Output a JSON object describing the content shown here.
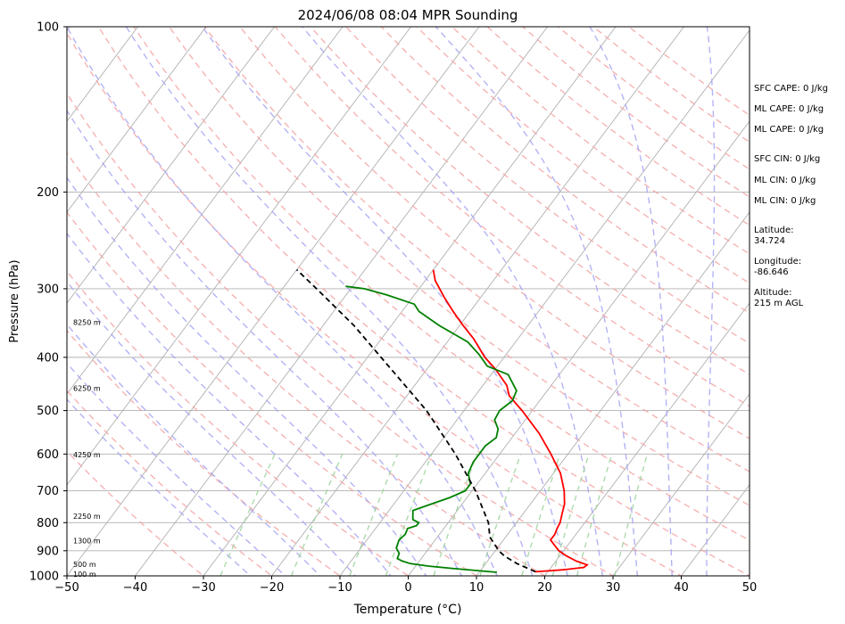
{
  "chart_data": {
    "type": "line",
    "title": "2024/06/08 08:04 MPR Sounding",
    "xlabel": "Temperature (°C)",
    "ylabel": "Pressure (hPa)",
    "xlim": [
      -50,
      50
    ],
    "ylim": [
      1000,
      100
    ],
    "y_scale": "log",
    "x_ticks": [
      "−50",
      "−40",
      "−30",
      "−20",
      "−10",
      "0",
      "10",
      "20",
      "30",
      "40",
      "50"
    ],
    "y_ticks": [
      {
        "p": 100,
        "label": "100"
      },
      {
        "p": 200,
        "label": "200"
      },
      {
        "p": 300,
        "label": "300"
      },
      {
        "p": 400,
        "label": "400"
      },
      {
        "p": 500,
        "label": "500"
      },
      {
        "p": 600,
        "label": "600"
      },
      {
        "p": 700,
        "label": "700"
      },
      {
        "p": 800,
        "label": "800"
      },
      {
        "p": 900,
        "label": "900"
      },
      {
        "p": 1000,
        "label": "1000"
      }
    ],
    "grid": true,
    "skew": true,
    "series": [
      {
        "id": "temperature",
        "color": "#ff0000",
        "p": [
          983,
          975,
          965,
          955,
          940,
          920,
          900,
          880,
          860,
          840,
          820,
          800,
          770,
          740,
          700,
          650,
          600,
          550,
          500,
          470,
          450,
          420,
          400,
          370,
          350,
          330,
          310,
          290,
          277
        ],
        "t": [
          18.2,
          22.0,
          24.8,
          25.0,
          23.0,
          21.0,
          19.3,
          18.1,
          16.9,
          16.9,
          16.6,
          16.4,
          15.7,
          15.0,
          13.5,
          11.0,
          7.5,
          3.5,
          -1.5,
          -5.0,
          -6.5,
          -10.0,
          -12.8,
          -16.5,
          -19.5,
          -22.5,
          -25.5,
          -28.5,
          -30.0
        ]
      },
      {
        "id": "dewpoint",
        "color": "#008000",
        "p": [
          985,
          970,
          960,
          950,
          940,
          930,
          910,
          890,
          860,
          840,
          820,
          810,
          800,
          790,
          775,
          760,
          740,
          720,
          700,
          680,
          650,
          620,
          580,
          560,
          540,
          520,
          500,
          480,
          460,
          430,
          415,
          395,
          375,
          350,
          330,
          320,
          308,
          300,
          297
        ],
        "t": [
          12.6,
          6.0,
          2.0,
          -1.0,
          -2.5,
          -3.5,
          -3.8,
          -4.8,
          -5.3,
          -5.0,
          -5.3,
          -4.3,
          -4.3,
          -5.5,
          -6.0,
          -6.5,
          -4.5,
          -2.5,
          -1.0,
          -1.0,
          -2.5,
          -3.0,
          -3.0,
          -2.3,
          -3.0,
          -4.5,
          -4.8,
          -4.0,
          -4.5,
          -7.5,
          -11.5,
          -14.0,
          -17.0,
          -23.0,
          -27.5,
          -29.0,
          -34.0,
          -38.0,
          -41.0
        ]
      },
      {
        "id": "parcel",
        "color": "#000000",
        "p": [
          983,
          950,
          920,
          900,
          850,
          800,
          700,
          600,
          500,
          400,
          350,
          300,
          277
        ],
        "t": [
          18.2,
          14.6,
          11.9,
          10.5,
          7.7,
          5.9,
          0.5,
          -6.5,
          -15.5,
          -28.0,
          -35.5,
          -45.0,
          -50.0
        ]
      }
    ],
    "height_labels": [
      {
        "p": 345,
        "text": "8250 m"
      },
      {
        "p": 455,
        "text": "6250 m"
      },
      {
        "p": 602,
        "text": "4250 m"
      },
      {
        "p": 778,
        "text": "2250 m"
      },
      {
        "p": 863,
        "text": "1300 m"
      },
      {
        "p": 952,
        "text": "500 m"
      },
      {
        "p": 993,
        "text": "100 m"
      }
    ],
    "annotations": [
      {
        "y": 99,
        "text": "SFC CAPE: 0 J/kg"
      },
      {
        "y": 122,
        "text": "ML CAPE: 0 J/kg"
      },
      {
        "y": 145,
        "text": "ML CAPE: 0 J/kg"
      },
      {
        "y": 178,
        "text": "SFC CIN: 0 J/kg"
      },
      {
        "y": 202,
        "text": "ML CIN: 0 J/kg"
      },
      {
        "y": 225,
        "text": "ML CIN: 0 J/kg"
      },
      {
        "y": 258,
        "text": "Latitude:"
      },
      {
        "y": 270,
        "text": "34.724"
      },
      {
        "y": 293,
        "text": "Longitude:"
      },
      {
        "y": 305,
        "text": "-86.646"
      },
      {
        "y": 328,
        "text": "Altitude:"
      },
      {
        "y": 340,
        "text": "215 m AGL"
      }
    ],
    "colors": {
      "isotherm": "#b0b0b0",
      "dry_adiabat": "#f4a6a6",
      "moist_adiabat": "#a6a6f4",
      "mixing_ratio": "#9fd39f"
    }
  }
}
